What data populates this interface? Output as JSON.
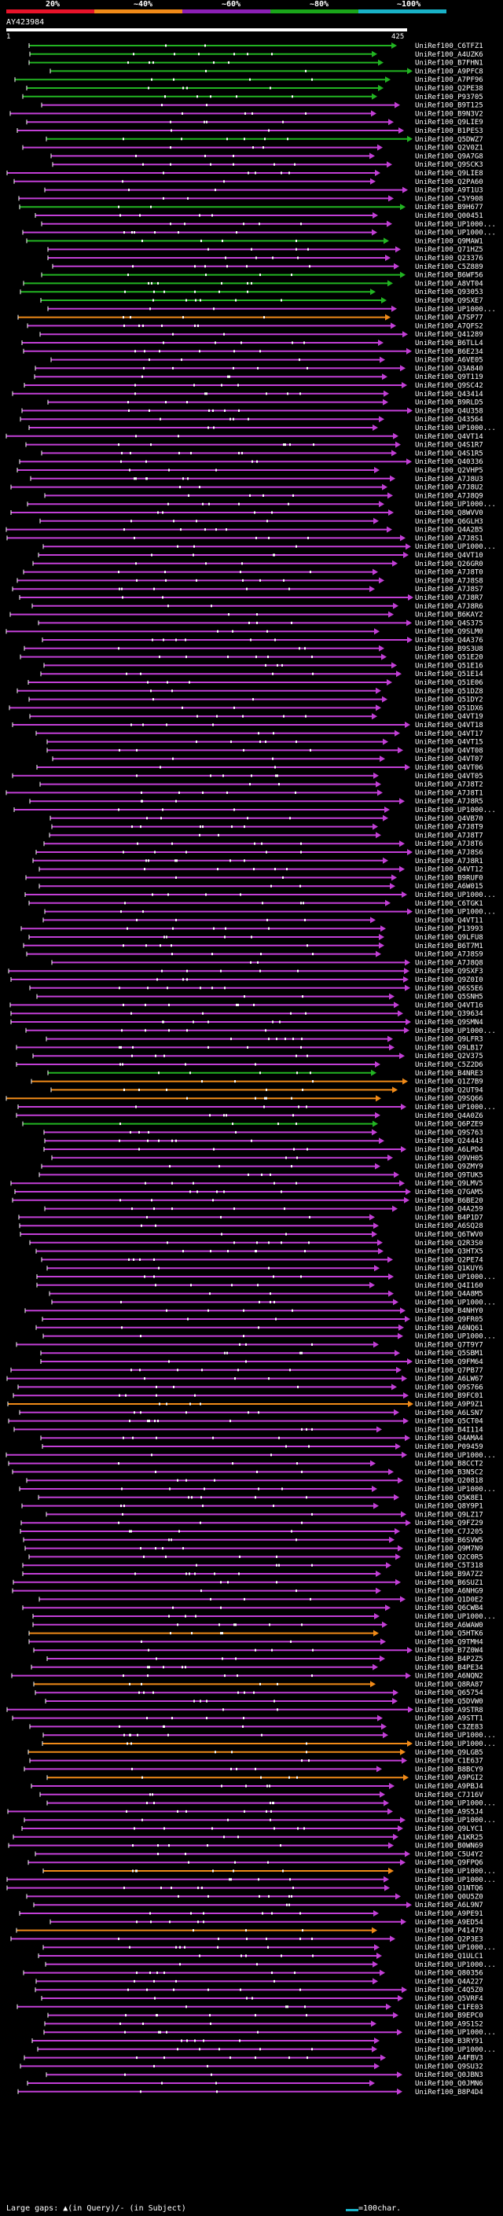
{
  "legend": {
    "labels": [
      "20%",
      "~40%",
      "~60%",
      "~80%",
      "~100%"
    ],
    "colors": [
      "#e8132a",
      "#f08a18",
      "#8b1fb5",
      "#1aa51a",
      "#19b2c8"
    ]
  },
  "query": {
    "title": "AY423984",
    "start": "1",
    "end": "425"
  },
  "footer": {
    "gaps_label": "Large gaps: ▲(in Query)/- (in Subject)",
    "scale_label": "=100char."
  },
  "hits": [
    {
      "label": "UniRef100_C6TFZ1",
      "color": "green"
    },
    {
      "label": "UniRef100_A4UZK6",
      "color": "green"
    },
    {
      "label": "UniRef100_B7FHN1",
      "color": "green"
    },
    {
      "label": "UniRef100_A9PFC8",
      "color": "green"
    },
    {
      "label": "UniRef100_A7PF96",
      "color": "green"
    },
    {
      "label": "UniRef100_Q2PE38",
      "color": "green"
    },
    {
      "label": "UniRef100_P93705",
      "color": "green"
    },
    {
      "label": "UniRef100_B9T125",
      "color": "purple"
    },
    {
      "label": "UniRef100_B9N3V2",
      "color": "purple"
    },
    {
      "label": "UniRef100_Q9LIE9",
      "color": "purple"
    },
    {
      "label": "UniRef100_B1PES3",
      "color": "purple"
    },
    {
      "label": "UniRef100_Q5DWZ7",
      "color": "green"
    },
    {
      "label": "UniRef100_Q2V0Z1",
      "color": "purple"
    },
    {
      "label": "UniRef100_Q9A7G8",
      "color": "purple"
    },
    {
      "label": "UniRef100_Q9SCK3",
      "color": "purple"
    },
    {
      "label": "UniRef100_Q9LIE8",
      "color": "purple"
    },
    {
      "label": "UniRef100_Q2PA60",
      "color": "purple"
    },
    {
      "label": "UniRef100_A9T1U3",
      "color": "purple"
    },
    {
      "label": "UniRef100_C5Y908",
      "color": "purple"
    },
    {
      "label": "UniRef100_B9H677",
      "color": "green"
    },
    {
      "label": "UniRef100_Q00451",
      "color": "purple"
    },
    {
      "label": "UniRef100_UP1000...",
      "color": "purple"
    },
    {
      "label": "UniRef100_UP1000...",
      "color": "purple"
    },
    {
      "label": "UniRef100_Q9MAW1",
      "color": "green"
    },
    {
      "label": "UniRef100_Q71HZ5",
      "color": "purple"
    },
    {
      "label": "UniRef100_Q23376",
      "color": "purple"
    },
    {
      "label": "UniRef100_C5Z889",
      "color": "purple"
    },
    {
      "label": "UniRef100_B6WF56",
      "color": "green"
    },
    {
      "label": "UniRef100_A8VT04",
      "color": "green"
    },
    {
      "label": "UniRef100_Q93053",
      "color": "green"
    },
    {
      "label": "UniRef100_Q9SXE7",
      "color": "green"
    },
    {
      "label": "UniRef100_UP1000...",
      "color": "purple"
    },
    {
      "label": "UniRef100_A7SP77",
      "color": "orange"
    },
    {
      "label": "UniRef100_A7QFS2",
      "color": "purple"
    },
    {
      "label": "UniRef100_Q41289",
      "color": "purple"
    },
    {
      "label": "UniRef100_B6TLL4",
      "color": "purple"
    },
    {
      "label": "UniRef100_B6E234",
      "color": "purple"
    },
    {
      "label": "UniRef100_A6VE05",
      "color": "purple"
    },
    {
      "label": "UniRef100_Q3A840",
      "color": "purple"
    },
    {
      "label": "UniRef100_Q9T119",
      "color": "purple"
    },
    {
      "label": "UniRef100_Q9SC42",
      "color": "purple"
    },
    {
      "label": "UniRef100_Q43414",
      "color": "purple"
    },
    {
      "label": "UniRef100_B9RLD5",
      "color": "purple"
    },
    {
      "label": "UniRef100_Q4U358",
      "color": "purple"
    },
    {
      "label": "UniRef100_Q43564",
      "color": "purple"
    },
    {
      "label": "UniRef100_UP1000...",
      "color": "purple"
    },
    {
      "label": "UniRef100_Q4VT14",
      "color": "purple"
    },
    {
      "label": "UniRef100_Q4S1R7",
      "color": "purple"
    },
    {
      "label": "UniRef100_Q4S1R5",
      "color": "purple"
    },
    {
      "label": "UniRef100_Q40336",
      "color": "purple"
    },
    {
      "label": "UniRef100_Q2VHP5",
      "color": "purple"
    },
    {
      "label": "UniRef100_A7J8U3",
      "color": "purple"
    },
    {
      "label": "UniRef100_A7J8U2",
      "color": "purple"
    },
    {
      "label": "UniRef100_A7J8Q9",
      "color": "purple"
    },
    {
      "label": "UniRef100_UP1000...",
      "color": "purple"
    },
    {
      "label": "UniRef100_Q8WVV0",
      "color": "purple"
    },
    {
      "label": "UniRef100_Q6GLH3",
      "color": "purple"
    },
    {
      "label": "UniRef100_Q4A2B5",
      "color": "purple"
    },
    {
      "label": "UniRef100_A7J8S1",
      "color": "purple"
    },
    {
      "label": "UniRef100_UP1000...",
      "color": "purple"
    },
    {
      "label": "UniRef100_Q4VT10",
      "color": "purple"
    },
    {
      "label": "UniRef100_Q26GR0",
      "color": "purple"
    },
    {
      "label": "UniRef100_A7J8T0",
      "color": "purple"
    },
    {
      "label": "UniRef100_A7J8S8",
      "color": "purple"
    },
    {
      "label": "UniRef100_A7J8S7",
      "color": "purple"
    },
    {
      "label": "UniRef100_A7J8R7",
      "color": "purple"
    },
    {
      "label": "UniRef100_A7J8R6",
      "color": "purple"
    },
    {
      "label": "UniRef100_B6KAY2",
      "color": "purple"
    },
    {
      "label": "UniRef100_Q4S375",
      "color": "purple"
    },
    {
      "label": "UniRef100_Q9SLM0",
      "color": "purple"
    },
    {
      "label": "UniRef100_Q4A376",
      "color": "purple"
    },
    {
      "label": "UniRef100_B9S3U8",
      "color": "purple"
    },
    {
      "label": "UniRef100_Q51E20",
      "color": "purple"
    },
    {
      "label": "UniRef100_Q51E16",
      "color": "purple"
    },
    {
      "label": "UniRef100_Q51E14",
      "color": "purple"
    },
    {
      "label": "UniRef100_Q51E06",
      "color": "purple"
    },
    {
      "label": "UniRef100_Q51DZ8",
      "color": "purple"
    },
    {
      "label": "UniRef100_Q51DY2",
      "color": "purple"
    },
    {
      "label": "UniRef100_Q51DX6",
      "color": "purple"
    },
    {
      "label": "UniRef100_Q4VT19",
      "color": "purple"
    },
    {
      "label": "UniRef100_Q4VT18",
      "color": "purple"
    },
    {
      "label": "UniRef100_Q4VT17",
      "color": "purple"
    },
    {
      "label": "UniRef100_Q4VT15",
      "color": "purple"
    },
    {
      "label": "UniRef100_Q4VT08",
      "color": "purple"
    },
    {
      "label": "UniRef100_Q4VT07",
      "color": "purple"
    },
    {
      "label": "UniRef100_Q4VT06",
      "color": "purple"
    },
    {
      "label": "UniRef100_Q4VT05",
      "color": "purple"
    },
    {
      "label": "UniRef100_A7J8T2",
      "color": "purple"
    },
    {
      "label": "UniRef100_A7J8T1",
      "color": "purple"
    },
    {
      "label": "UniRef100_A7J8R5",
      "color": "purple"
    },
    {
      "label": "UniRef100_UP1000...",
      "color": "purple"
    },
    {
      "label": "UniRef100_Q4VB70",
      "color": "purple"
    },
    {
      "label": "UniRef100_A7J8T9",
      "color": "purple"
    },
    {
      "label": "UniRef100_A7J8T7",
      "color": "purple"
    },
    {
      "label": "UniRef100_A7J8T6",
      "color": "purple"
    },
    {
      "label": "UniRef100_A7J8S6",
      "color": "purple"
    },
    {
      "label": "UniRef100_A7J8R1",
      "color": "purple"
    },
    {
      "label": "UniRef100_Q4VT12",
      "color": "purple"
    },
    {
      "label": "UniRef100_B9RUF0",
      "color": "purple"
    },
    {
      "label": "UniRef100_A6W015",
      "color": "purple"
    },
    {
      "label": "UniRef100_UP1000...",
      "color": "purple"
    },
    {
      "label": "UniRef100_C6TGK1",
      "color": "purple"
    },
    {
      "label": "UniRef100_UP1000...",
      "color": "purple"
    },
    {
      "label": "UniRef100_Q4VT11",
      "color": "purple"
    },
    {
      "label": "UniRef100_P13993",
      "color": "purple"
    },
    {
      "label": "UniRef100_Q9LFU8",
      "color": "purple"
    },
    {
      "label": "UniRef100_B6T7M1",
      "color": "purple"
    },
    {
      "label": "UniRef100_A7J8S9",
      "color": "purple"
    },
    {
      "label": "UniRef100_A7J8Q8",
      "color": "purple"
    },
    {
      "label": "UniRef100_Q9SXF3",
      "color": "purple"
    },
    {
      "label": "UniRef100_Q9Z0I0",
      "color": "purple"
    },
    {
      "label": "UniRef100_Q6S5E6",
      "color": "purple"
    },
    {
      "label": "UniRef100_Q5SNH5",
      "color": "purple"
    },
    {
      "label": "UniRef100_Q4VT16",
      "color": "purple"
    },
    {
      "label": "UniRef100_Q39634",
      "color": "purple"
    },
    {
      "label": "UniRef100_Q9SMN4",
      "color": "purple"
    },
    {
      "label": "UniRef100_UP1000...",
      "color": "purple"
    },
    {
      "label": "UniRef100_Q9LFR3",
      "color": "purple"
    },
    {
      "label": "UniRef100_Q9LB17",
      "color": "purple"
    },
    {
      "label": "UniRef100_Q2V375",
      "color": "purple"
    },
    {
      "label": "UniRef100_C5Z2D6",
      "color": "purple"
    },
    {
      "label": "UniRef100_B4NRE3",
      "color": "green"
    },
    {
      "label": "UniRef100_Q1Z7B9",
      "color": "orange"
    },
    {
      "label": "UniRef100_Q2UT94",
      "color": "orange"
    },
    {
      "label": "UniRef100_Q9SQ66",
      "color": "orange"
    },
    {
      "label": "UniRef100_UP1000...",
      "color": "purple"
    },
    {
      "label": "UniRef100_Q4A0Z6",
      "color": "purple"
    },
    {
      "label": "UniRef100_Q6PZE9",
      "color": "green"
    },
    {
      "label": "UniRef100_Q9S763",
      "color": "purple"
    },
    {
      "label": "UniRef100_Q24443",
      "color": "purple"
    },
    {
      "label": "UniRef100_A6LPD4",
      "color": "purple"
    },
    {
      "label": "UniRef100_Q9VH05",
      "color": "purple"
    },
    {
      "label": "UniRef100_Q9ZMY9",
      "color": "purple"
    },
    {
      "label": "UniRef100_Q9TUK5",
      "color": "purple"
    },
    {
      "label": "UniRef100_Q9LMV5",
      "color": "purple"
    },
    {
      "label": "UniRef100_Q7GAM5",
      "color": "purple"
    },
    {
      "label": "UniRef100_B6BE20",
      "color": "purple"
    },
    {
      "label": "UniRef100_Q4A259",
      "color": "purple"
    },
    {
      "label": "UniRef100_B4P1D7",
      "color": "purple"
    },
    {
      "label": "UniRef100_A6SQ28",
      "color": "purple"
    },
    {
      "label": "UniRef100_Q6TWV0",
      "color": "purple"
    },
    {
      "label": "UniRef100_Q2R3S0",
      "color": "purple"
    },
    {
      "label": "UniRef100_Q3HTX5",
      "color": "purple"
    },
    {
      "label": "UniRef100_Q2PE74",
      "color": "purple"
    },
    {
      "label": "UniRef100_Q1KUY6",
      "color": "purple"
    },
    {
      "label": "UniRef100_UP1000...",
      "color": "purple"
    },
    {
      "label": "UniRef100_Q4I160",
      "color": "purple"
    },
    {
      "label": "UniRef100_Q4A8M5",
      "color": "purple"
    },
    {
      "label": "UniRef100_UP1000...",
      "color": "purple"
    },
    {
      "label": "UniRef100_B4NHY0",
      "color": "purple"
    },
    {
      "label": "UniRef100_Q9FR05",
      "color": "purple"
    },
    {
      "label": "UniRef100_A6NQ61",
      "color": "purple"
    },
    {
      "label": "UniRef100_UP1000...",
      "color": "purple"
    },
    {
      "label": "UniRef100_Q7T9Y7",
      "color": "purple"
    },
    {
      "label": "UniRef100_Q5SBM1",
      "color": "purple"
    },
    {
      "label": "UniRef100_Q9FM64",
      "color": "purple"
    },
    {
      "label": "UniRef100_Q7PB77",
      "color": "purple"
    },
    {
      "label": "UniRef100_A6LW67",
      "color": "purple"
    },
    {
      "label": "UniRef100_Q9S766",
      "color": "purple"
    },
    {
      "label": "UniRef100_B9FC01",
      "color": "purple"
    },
    {
      "label": "UniRef100_A9P9Z1",
      "color": "orange"
    },
    {
      "label": "UniRef100_A6LSN7",
      "color": "purple"
    },
    {
      "label": "UniRef100_Q5CT04",
      "color": "purple"
    },
    {
      "label": "UniRef100_B4I114",
      "color": "purple"
    },
    {
      "label": "UniRef100_Q4AMA4",
      "color": "purple"
    },
    {
      "label": "UniRef100_P09459",
      "color": "purple"
    },
    {
      "label": "UniRef100_UP1000...",
      "color": "purple"
    },
    {
      "label": "UniRef100_B8CCT2",
      "color": "purple"
    },
    {
      "label": "UniRef100_B3N5C2",
      "color": "purple"
    },
    {
      "label": "UniRef100_Q20818",
      "color": "purple"
    },
    {
      "label": "UniRef100_UP1000...",
      "color": "purple"
    },
    {
      "label": "UniRef100_Q5K8E1",
      "color": "purple"
    },
    {
      "label": "UniRef100_Q8Y9P1",
      "color": "purple"
    },
    {
      "label": "UniRef100_Q9LZ17",
      "color": "purple"
    },
    {
      "label": "UniRef100_Q9FZ29",
      "color": "purple"
    },
    {
      "label": "UniRef100_C7J205",
      "color": "purple"
    },
    {
      "label": "UniRef100_B6SVW5",
      "color": "purple"
    },
    {
      "label": "UniRef100_Q9M7N9",
      "color": "purple"
    },
    {
      "label": "UniRef100_Q2C0R5",
      "color": "purple"
    },
    {
      "label": "UniRef100_C5T318",
      "color": "purple"
    },
    {
      "label": "UniRef100_B9A7Z2",
      "color": "purple"
    },
    {
      "label": "UniRef100_B6SUZ1",
      "color": "purple"
    },
    {
      "label": "UniRef100_A6NHG9",
      "color": "purple"
    },
    {
      "label": "UniRef100_Q1D0E2",
      "color": "purple"
    },
    {
      "label": "UniRef100_Q6CWB4",
      "color": "purple"
    },
    {
      "label": "UniRef100_UP1000...",
      "color": "purple"
    },
    {
      "label": "UniRef100_A6WAW0",
      "color": "purple"
    },
    {
      "label": "UniRef100_Q5HTK6",
      "color": "orange"
    },
    {
      "label": "UniRef100_Q9TMH4",
      "color": "purple"
    },
    {
      "label": "UniRef100_B7Z0W4",
      "color": "purple"
    },
    {
      "label": "UniRef100_B4P2Z5",
      "color": "purple"
    },
    {
      "label": "UniRef100_B4PE34",
      "color": "purple"
    },
    {
      "label": "UniRef100_A6NQN2",
      "color": "purple"
    },
    {
      "label": "UniRef100_Q8RA87",
      "color": "orange"
    },
    {
      "label": "UniRef100_Q65754",
      "color": "purple"
    },
    {
      "label": "UniRef100_Q5DVW0",
      "color": "purple"
    },
    {
      "label": "UniRef100_A9STR8",
      "color": "purple"
    },
    {
      "label": "UniRef100_A9STT1",
      "color": "purple"
    },
    {
      "label": "UniRef100_C3ZE83",
      "color": "purple"
    },
    {
      "label": "UniRef100_UP1000...",
      "color": "purple"
    },
    {
      "label": "UniRef100_UP1000...",
      "color": "orange"
    },
    {
      "label": "UniRef100_Q9LGB5",
      "color": "orange"
    },
    {
      "label": "UniRef100_C1E637",
      "color": "purple"
    },
    {
      "label": "UniRef100_B8BCY9",
      "color": "purple"
    },
    {
      "label": "UniRef100_A9PGI2",
      "color": "orange"
    },
    {
      "label": "UniRef100_A9PBJ4",
      "color": "purple"
    },
    {
      "label": "UniRef100_C7J16V",
      "color": "purple"
    },
    {
      "label": "UniRef100_UP1000...",
      "color": "purple"
    },
    {
      "label": "UniRef100_A9S5J4",
      "color": "purple"
    },
    {
      "label": "UniRef100_UP1000...",
      "color": "purple"
    },
    {
      "label": "UniRef100_Q9LYC1",
      "color": "purple"
    },
    {
      "label": "UniRef100_A1KR25",
      "color": "purple"
    },
    {
      "label": "UniRef100_B0WN69",
      "color": "purple"
    },
    {
      "label": "UniRef100_C5U4Y2",
      "color": "purple"
    },
    {
      "label": "UniRef100_Q9FPQ6",
      "color": "purple"
    },
    {
      "label": "UniRef100_UP1000...",
      "color": "orange"
    },
    {
      "label": "UniRef100_UP1000...",
      "color": "purple"
    },
    {
      "label": "UniRef100_Q1NTQ6",
      "color": "purple"
    },
    {
      "label": "UniRef100_Q0U5Z0",
      "color": "purple"
    },
    {
      "label": "UniRef100_A6L9N7",
      "color": "purple"
    },
    {
      "label": "UniRef100_A9PE91",
      "color": "purple"
    },
    {
      "label": "UniRef100_A9ED54",
      "color": "purple"
    },
    {
      "label": "UniRef100_P41479",
      "color": "orange"
    },
    {
      "label": "UniRef100_Q2P3E3",
      "color": "purple"
    },
    {
      "label": "UniRef100_UP1000...",
      "color": "purple"
    },
    {
      "label": "UniRef100_Q1ULC1",
      "color": "purple"
    },
    {
      "label": "UniRef100_UP1000...",
      "color": "purple"
    },
    {
      "label": "UniRef100_Q80356",
      "color": "purple"
    },
    {
      "label": "UniRef100_Q4A227",
      "color": "purple"
    },
    {
      "label": "UniRef100_C4Q5Z0",
      "color": "purple"
    },
    {
      "label": "UniRef100_Q5VRF4",
      "color": "purple"
    },
    {
      "label": "UniRef100_C1FE03",
      "color": "purple"
    },
    {
      "label": "UniRef100_B9EPC0",
      "color": "purple"
    },
    {
      "label": "UniRef100_A9S1S2",
      "color": "purple"
    },
    {
      "label": "UniRef100_UP1000...",
      "color": "purple"
    },
    {
      "label": "UniRef100_B3RY91",
      "color": "purple"
    },
    {
      "label": "UniRef100_UP1000...",
      "color": "purple"
    },
    {
      "label": "UniRef100_A4FBV3",
      "color": "purple"
    },
    {
      "label": "UniRef100_Q9SU32",
      "color": "purple"
    },
    {
      "label": "UniRef100_Q0JBN3",
      "color": "purple"
    },
    {
      "label": "UniRef100_Q0JMN6",
      "color": "purple"
    },
    {
      "label": "UniRef100_B8P4D4",
      "color": "purple"
    }
  ]
}
